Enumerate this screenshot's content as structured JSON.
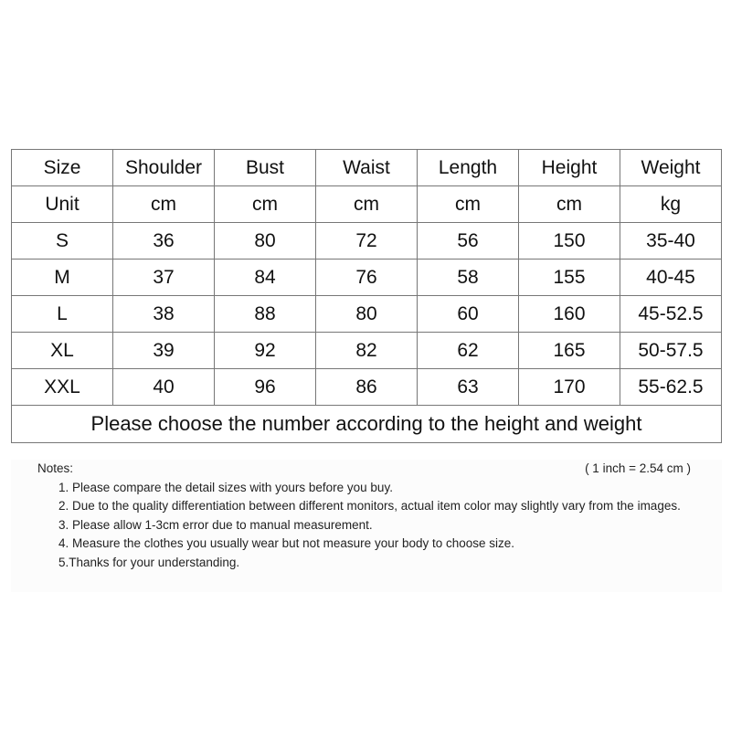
{
  "table": {
    "headers": [
      "Size",
      "Shoulder",
      "Bust",
      "Waist",
      "Length",
      "Height",
      "Weight"
    ],
    "units": [
      "Unit",
      "cm",
      "cm",
      "cm",
      "cm",
      "cm",
      "kg"
    ],
    "rows": [
      [
        "S",
        "36",
        "80",
        "72",
        "56",
        "150",
        "35-40"
      ],
      [
        "M",
        "37",
        "84",
        "76",
        "58",
        "155",
        "40-45"
      ],
      [
        "L",
        "38",
        "88",
        "80",
        "60",
        "160",
        "45-52.5"
      ],
      [
        "XL",
        "39",
        "92",
        "82",
        "62",
        "165",
        "50-57.5"
      ],
      [
        "XXL",
        "40",
        "96",
        "86",
        "63",
        "170",
        "55-62.5"
      ]
    ],
    "footer": "Please choose the number according to the height and weight"
  },
  "notes": {
    "title": "Notes:",
    "conversion": "( 1 inch = 2.54 cm )",
    "items": [
      "1. Please compare the detail sizes with yours before you buy.",
      "2. Due to the quality differentiation between different monitors, actual item color may slightly vary from the images.",
      "3. Please allow 1-3cm error due to manual measurement.",
      "4. Measure the clothes you usually wear but not measure your body to choose size.",
      "5.Thanks for your understanding."
    ]
  }
}
